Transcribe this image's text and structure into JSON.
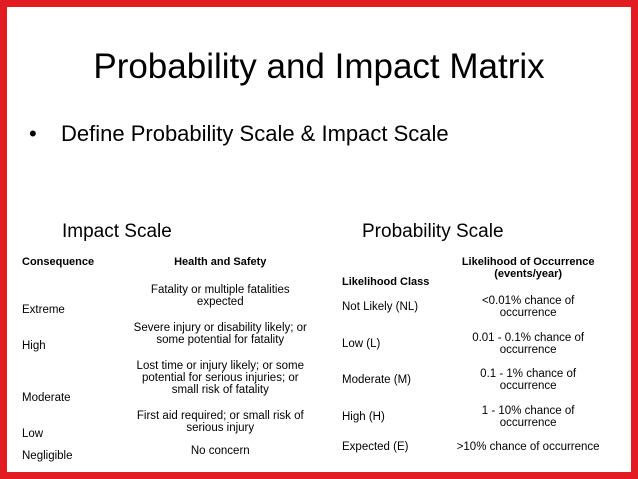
{
  "title": "Probability and Impact Matrix",
  "bullet": "Define Probability Scale & Impact Scale",
  "impact": {
    "heading": "Impact Scale",
    "columns": [
      "Consequence",
      "Health and Safety"
    ],
    "rows": [
      [
        "Extreme",
        "Fatality or multiple fatalities expected"
      ],
      [
        "High",
        "Severe injury or disability likely; or some potential for fatality"
      ],
      [
        "Moderate",
        "Lost time or injury likely; or some potential for serious injuries; or small risk of fatality"
      ],
      [
        "Low",
        "First aid required; or small risk of serious injury"
      ],
      [
        "Negligible",
        "No concern"
      ]
    ]
  },
  "probability": {
    "heading": "Probability Scale",
    "columns": [
      "Likelihood Class",
      "Likelihood of Occurrence (events/year)"
    ],
    "rows": [
      [
        "Not Likely (NL)",
        "<0.01% chance of occurrence"
      ],
      [
        "Low (L)",
        "0.01 - 0.1% chance of occurrence"
      ],
      [
        "Moderate (M)",
        "0.1 - 1% chance of occurrence"
      ],
      [
        "High (H)",
        "1 - 10% chance of occurrence"
      ],
      [
        "Expected (E)",
        ">10% chance of occurrence"
      ]
    ]
  }
}
